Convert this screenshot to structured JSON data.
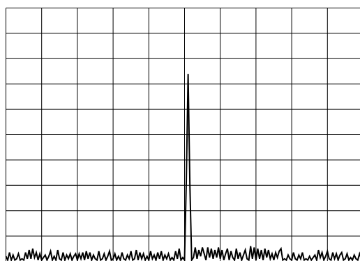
{
  "chart_data": {
    "type": "line",
    "title": "",
    "xlabel": "",
    "ylabel": "",
    "grid": true,
    "xlim": [
      0,
      10
    ],
    "ylim": [
      0,
      10
    ],
    "grid_divisions": {
      "x": 10,
      "y": 10
    },
    "series": [
      {
        "values": [
          [
            0.0,
            0.2
          ],
          [
            0.05,
            0.05
          ],
          [
            0.1,
            0.35
          ],
          [
            0.15,
            0.05
          ],
          [
            0.2,
            0.25
          ],
          [
            0.25,
            0.05
          ],
          [
            0.3,
            0.1
          ],
          [
            0.35,
            0.3
          ],
          [
            0.4,
            0.05
          ],
          [
            0.45,
            0.1
          ],
          [
            0.5,
            0.05
          ],
          [
            0.55,
            0.35
          ],
          [
            0.6,
            0.1
          ],
          [
            0.65,
            0.45
          ],
          [
            0.7,
            0.1
          ],
          [
            0.75,
            0.5
          ],
          [
            0.8,
            0.15
          ],
          [
            0.85,
            0.35
          ],
          [
            0.9,
            0.05
          ],
          [
            0.95,
            0.3
          ],
          [
            1.0,
            0.05
          ],
          [
            1.05,
            0.15
          ],
          [
            1.1,
            0.25
          ],
          [
            1.15,
            0.05
          ],
          [
            1.2,
            0.2
          ],
          [
            1.25,
            0.4
          ],
          [
            1.3,
            0.05
          ],
          [
            1.35,
            0.2
          ],
          [
            1.4,
            0.05
          ],
          [
            1.45,
            0.45
          ],
          [
            1.5,
            0.1
          ],
          [
            1.55,
            0.05
          ],
          [
            1.6,
            0.35
          ],
          [
            1.65,
            0.05
          ],
          [
            1.7,
            0.25
          ],
          [
            1.75,
            0.1
          ],
          [
            1.8,
            0.3
          ],
          [
            1.85,
            0.05
          ],
          [
            1.9,
            0.2
          ],
          [
            1.95,
            0.3
          ],
          [
            2.0,
            0.05
          ],
          [
            2.05,
            0.3
          ],
          [
            2.1,
            0.1
          ],
          [
            2.15,
            0.35
          ],
          [
            2.2,
            0.05
          ],
          [
            2.25,
            0.4
          ],
          [
            2.3,
            0.1
          ],
          [
            2.35,
            0.35
          ],
          [
            2.4,
            0.05
          ],
          [
            2.45,
            0.25
          ],
          [
            2.5,
            0.1
          ],
          [
            2.55,
            0.05
          ],
          [
            2.6,
            0.4
          ],
          [
            2.65,
            0.05
          ],
          [
            2.7,
            0.1
          ],
          [
            2.75,
            0.3
          ],
          [
            2.8,
            0.05
          ],
          [
            2.85,
            0.2
          ],
          [
            2.9,
            0.4
          ],
          [
            2.95,
            0.05
          ],
          [
            3.0,
            0.1
          ],
          [
            3.05,
            0.3
          ],
          [
            3.1,
            0.05
          ],
          [
            3.15,
            0.2
          ],
          [
            3.2,
            0.05
          ],
          [
            3.25,
            0.35
          ],
          [
            3.3,
            0.1
          ],
          [
            3.35,
            0.05
          ],
          [
            3.4,
            0.25
          ],
          [
            3.45,
            0.1
          ],
          [
            3.5,
            0.4
          ],
          [
            3.55,
            0.05
          ],
          [
            3.6,
            0.1
          ],
          [
            3.65,
            0.45
          ],
          [
            3.7,
            0.05
          ],
          [
            3.75,
            0.35
          ],
          [
            3.8,
            0.1
          ],
          [
            3.85,
            0.3
          ],
          [
            3.9,
            0.05
          ],
          [
            3.95,
            0.2
          ],
          [
            4.0,
            0.05
          ],
          [
            4.05,
            0.4
          ],
          [
            4.1,
            0.1
          ],
          [
            4.15,
            0.25
          ],
          [
            4.2,
            0.05
          ],
          [
            4.25,
            0.35
          ],
          [
            4.3,
            0.1
          ],
          [
            4.35,
            0.4
          ],
          [
            4.4,
            0.05
          ],
          [
            4.45,
            0.25
          ],
          [
            4.5,
            0.1
          ],
          [
            4.55,
            0.3
          ],
          [
            4.6,
            0.05
          ],
          [
            4.65,
            0.15
          ],
          [
            4.7,
            0.05
          ],
          [
            4.75,
            0.4
          ],
          [
            4.8,
            0.1
          ],
          [
            4.85,
            0.5
          ],
          [
            4.9,
            0.05
          ],
          [
            4.95,
            0.15
          ],
          [
            5.0,
            0.05
          ],
          [
            5.05,
            3.2
          ],
          [
            5.1,
            7.4
          ],
          [
            5.15,
            3.0
          ],
          [
            5.2,
            0.05
          ],
          [
            5.25,
            0.15
          ],
          [
            5.3,
            0.55
          ],
          [
            5.35,
            0.1
          ],
          [
            5.4,
            0.45
          ],
          [
            5.45,
            0.2
          ],
          [
            5.5,
            0.55
          ],
          [
            5.55,
            0.3
          ],
          [
            5.6,
            0.05
          ],
          [
            5.65,
            0.55
          ],
          [
            5.7,
            0.15
          ],
          [
            5.75,
            0.5
          ],
          [
            5.8,
            0.1
          ],
          [
            5.85,
            0.45
          ],
          [
            5.9,
            0.15
          ],
          [
            5.95,
            0.55
          ],
          [
            6.0,
            0.1
          ],
          [
            6.05,
            0.45
          ],
          [
            6.1,
            0.05
          ],
          [
            6.15,
            0.3
          ],
          [
            6.2,
            0.5
          ],
          [
            6.25,
            0.05
          ],
          [
            6.3,
            0.4
          ],
          [
            6.35,
            0.15
          ],
          [
            6.4,
            0.05
          ],
          [
            6.45,
            0.5
          ],
          [
            6.5,
            0.1
          ],
          [
            6.55,
            0.35
          ],
          [
            6.6,
            0.05
          ],
          [
            6.65,
            0.25
          ],
          [
            6.7,
            0.45
          ],
          [
            6.75,
            0.1
          ],
          [
            6.8,
            0.05
          ],
          [
            6.85,
            0.6
          ],
          [
            6.9,
            0.1
          ],
          [
            6.95,
            0.55
          ],
          [
            7.0,
            0.05
          ],
          [
            7.05,
            0.5
          ],
          [
            7.1,
            0.1
          ],
          [
            7.15,
            0.45
          ],
          [
            7.2,
            0.05
          ],
          [
            7.25,
            0.5
          ],
          [
            7.3,
            0.15
          ],
          [
            7.35,
            0.45
          ],
          [
            7.4,
            0.1
          ],
          [
            7.45,
            0.3
          ],
          [
            7.5,
            0.05
          ],
          [
            7.55,
            0.35
          ],
          [
            7.6,
            0.15
          ],
          [
            7.65,
            0.4
          ],
          [
            7.7,
            0.5
          ],
          [
            7.75,
            0.05
          ],
          [
            7.8,
            0.1
          ],
          [
            7.85,
            0.05
          ],
          [
            7.9,
            0.25
          ],
          [
            7.95,
            0.1
          ],
          [
            8.0,
            0.05
          ],
          [
            8.05,
            0.35
          ],
          [
            8.1,
            0.1
          ],
          [
            8.15,
            0.05
          ],
          [
            8.2,
            0.25
          ],
          [
            8.25,
            0.1
          ],
          [
            8.3,
            0.35
          ],
          [
            8.35,
            0.05
          ],
          [
            8.4,
            0.1
          ],
          [
            8.45,
            0.05
          ],
          [
            8.5,
            0.2
          ],
          [
            8.55,
            0.05
          ],
          [
            8.6,
            0.15
          ],
          [
            8.65,
            0.25
          ],
          [
            8.7,
            0.05
          ],
          [
            8.75,
            0.45
          ],
          [
            8.8,
            0.15
          ],
          [
            8.85,
            0.35
          ],
          [
            8.9,
            0.05
          ],
          [
            8.95,
            0.2
          ],
          [
            9.0,
            0.4
          ],
          [
            9.05,
            0.1
          ],
          [
            9.1,
            0.05
          ],
          [
            9.15,
            0.35
          ],
          [
            9.2,
            0.1
          ],
          [
            9.25,
            0.3
          ],
          [
            9.3,
            0.05
          ],
          [
            9.35,
            0.25
          ],
          [
            9.4,
            0.35
          ],
          [
            9.45,
            0.05
          ],
          [
            9.5,
            0.1
          ],
          [
            9.55,
            0.3
          ],
          [
            9.6,
            0.05
          ],
          [
            9.65,
            0.15
          ],
          [
            9.7,
            0.05
          ],
          [
            9.75,
            0.25
          ],
          [
            9.8,
            0.1
          ],
          [
            9.85,
            0.05
          ],
          [
            9.9,
            0.3
          ],
          [
            9.95,
            0.1
          ],
          [
            10.0,
            0.2
          ]
        ],
        "color": "#000000"
      }
    ],
    "grid_color": "#000000"
  }
}
